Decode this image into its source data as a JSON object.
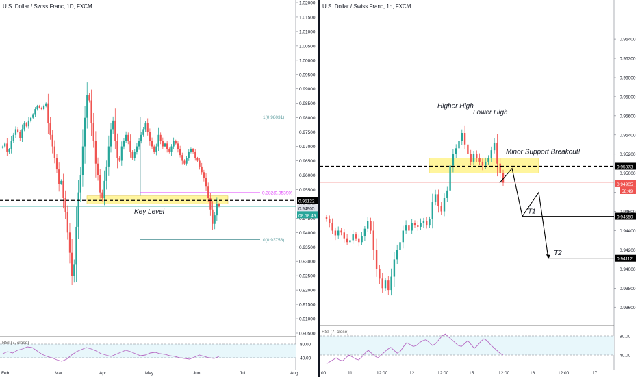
{
  "left": {
    "title": "U.S. Dollar / Swiss Franc, 1D, FXCM",
    "price_axis": [
      "1.02000",
      "1.01500",
      "1.01000",
      "1.00500",
      "1.00000",
      "0.99500",
      "0.99000",
      "0.98500",
      "0.98000",
      "0.97500",
      "0.97000",
      "0.96500",
      "0.96000",
      "0.95500",
      "0.95000",
      "0.94500",
      "0.94000",
      "0.93500",
      "0.93000",
      "0.92500",
      "0.92000",
      "0.91500",
      "0.91000",
      "0.90500"
    ],
    "time_axis": [
      "Feb",
      "Mar",
      "Apr",
      "May",
      "Jun",
      "Jul",
      "Aug"
    ],
    "rsi_label": "RSI (7, close)",
    "rsi_axis": [
      "80.00",
      "40.00"
    ],
    "fib_labels": {
      "top": "1(0.98031)",
      "mid": "0.382(0.95390)",
      "bottom": "0(0.93758)"
    },
    "annotation": "Key Level",
    "price_tags": {
      "black": "0.95122",
      "gray": "0.94905",
      "countdown": "08:58:49"
    }
  },
  "right": {
    "title": "U.S. Dollar / Swiss Franc, 1h, FXCM",
    "price_axis": [
      "0.96400",
      "0.96200",
      "0.96000",
      "0.95800",
      "0.95600",
      "0.95400",
      "0.95200",
      "0.95000",
      "0.94800",
      "0.94600",
      "0.94400",
      "0.94200",
      "0.94000",
      "0.93800",
      "0.93600"
    ],
    "time_axis": [
      "00",
      "11",
      "12:00",
      "12",
      "12:00",
      "15",
      "12:00",
      "16",
      "12:00",
      "17"
    ],
    "rsi_label": "RSI (7, close)",
    "rsi_axis": [
      "80.00",
      "40.00"
    ],
    "annotations": {
      "higher_high": "Higher High",
      "lower_high": "Lower High",
      "breakout": "Minor Support Breakout!",
      "t1": "T1",
      "t2": "T2"
    },
    "price_tags": {
      "black": "0.95073",
      "red": "0.94905",
      "countdown": "58:49",
      "t1": "0.94550",
      "t2": "0.94112"
    }
  },
  "colors": {
    "bull": "#26a69a",
    "bear": "#ef5350",
    "rsi": "#b667c2",
    "zone": "#fff59d",
    "fib": "#5f9ea0",
    "fib_mid": "#e040fb"
  },
  "chart_data": [
    {
      "type": "candlestick",
      "title": "U.S. Dollar / Swiss Franc, 1D, FXCM",
      "ylim": [
        0.905,
        1.02
      ],
      "x_start": "2020-01-20",
      "x_end": "2020-08-01",
      "close_series": [
        0.97,
        0.971,
        0.968,
        0.969,
        0.972,
        0.974,
        0.976,
        0.975,
        0.973,
        0.976,
        0.978,
        0.977,
        0.979,
        0.98,
        0.981,
        0.983,
        0.984,
        0.9835,
        0.983,
        0.984,
        0.985,
        0.978,
        0.974,
        0.97,
        0.966,
        0.962,
        0.957,
        0.958,
        0.952,
        0.947,
        0.94,
        0.933,
        0.925,
        0.929,
        0.942,
        0.954,
        0.96,
        0.97,
        0.98,
        0.988,
        0.986,
        0.978,
        0.972,
        0.964,
        0.96,
        0.954,
        0.952,
        0.958,
        0.963,
        0.97,
        0.976,
        0.979,
        0.972,
        0.966,
        0.965,
        0.97,
        0.972,
        0.974,
        0.972,
        0.968,
        0.966,
        0.968,
        0.97,
        0.972,
        0.974,
        0.976,
        0.978,
        0.975,
        0.972,
        0.97,
        0.968,
        0.97,
        0.974,
        0.972,
        0.97,
        0.971,
        0.969,
        0.968,
        0.97,
        0.972,
        0.971,
        0.969,
        0.967,
        0.965,
        0.964,
        0.966,
        0.968,
        0.969,
        0.968,
        0.966,
        0.965,
        0.963,
        0.961,
        0.959,
        0.956,
        0.952,
        0.948,
        0.943,
        0.946,
        0.95,
        0.9491
      ],
      "annotations": [
        "Key Level",
        "1(0.98031)",
        "0.382(0.95390)",
        "0(0.93758)"
      ],
      "levels": {
        "key_level": 0.95122,
        "last": 0.94905,
        "fib_1": 0.98031,
        "fib_0382": 0.9539,
        "fib_0": 0.93758
      },
      "rsi": {
        "label": "RSI (7, close)",
        "ylim": [
          20,
          100
        ],
        "bands": [
          80,
          40
        ],
        "values": [
          52,
          58,
          54,
          62,
          66,
          72,
          70,
          60,
          50,
          44,
          40,
          34,
          30,
          36,
          48,
          58,
          64,
          70,
          66,
          60,
          52,
          48,
          44,
          50,
          56,
          62,
          58,
          52,
          46,
          48,
          54,
          56,
          52,
          50,
          46,
          44,
          40,
          38,
          36,
          42,
          48,
          44,
          40,
          38,
          44
        ]
      }
    },
    {
      "type": "candlestick",
      "title": "U.S. Dollar / Swiss Franc, 1h, FXCM",
      "ylim": [
        0.935,
        0.966
      ],
      "x_start": "2020-06-10 00:00",
      "x_end": "2020-06-17 12:00",
      "close_series": [
        0.9452,
        0.9448,
        0.944,
        0.9435,
        0.944,
        0.9438,
        0.9432,
        0.9428,
        0.943,
        0.9436,
        0.9432,
        0.9428,
        0.9434,
        0.9442,
        0.945,
        0.944,
        0.942,
        0.94,
        0.939,
        0.938,
        0.9388,
        0.9378,
        0.9392,
        0.941,
        0.942,
        0.9428,
        0.944,
        0.9446,
        0.944,
        0.9448,
        0.9446,
        0.9444,
        0.9448,
        0.945,
        0.9446,
        0.9452,
        0.947,
        0.9478,
        0.9466,
        0.946,
        0.9474,
        0.9482,
        0.9508,
        0.952,
        0.9526,
        0.9534,
        0.9542,
        0.953,
        0.952,
        0.9512,
        0.952,
        0.9516,
        0.9512,
        0.9508,
        0.9512,
        0.9516,
        0.9524,
        0.9532,
        0.951,
        0.95,
        0.949
      ],
      "annotations": [
        "Higher High",
        "Lower High",
        "Minor Support Breakout!",
        "T1",
        "T2"
      ],
      "levels": {
        "support": 0.95073,
        "last": 0.94905,
        "T1": 0.9455,
        "T2": 0.94112
      },
      "projection": [
        {
          "x": "2020-06-15 12:00",
          "y": 0.9505
        },
        {
          "x": "2020-06-15 18:00",
          "y": 0.9455
        },
        {
          "x": "2020-06-16 06:00",
          "y": 0.948
        },
        {
          "x": "2020-06-16 12:00",
          "y": 0.9411
        }
      ],
      "rsi": {
        "label": "RSI (7, close)",
        "ylim": [
          20,
          100
        ],
        "bands": [
          80,
          40
        ],
        "values": [
          22,
          26,
          30,
          34,
          30,
          28,
          34,
          40,
          36,
          32,
          30,
          36,
          44,
          50,
          44,
          38,
          34,
          40,
          46,
          52,
          56,
          50,
          44,
          48,
          58,
          66,
          62,
          58,
          60,
          66,
          70,
          72,
          66,
          60,
          64,
          72,
          80,
          84,
          78,
          72,
          66,
          60,
          58,
          64,
          70,
          62,
          54,
          60,
          68,
          74,
          70,
          62,
          56,
          50,
          44,
          40
        ]
      }
    }
  ]
}
